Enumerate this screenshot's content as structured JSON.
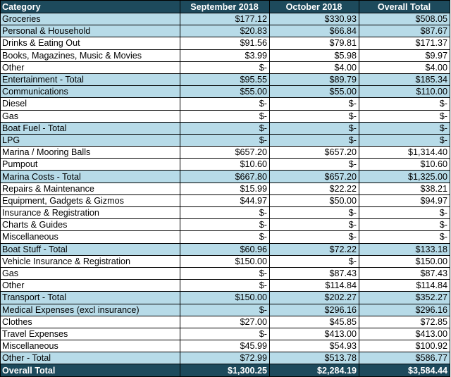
{
  "table": {
    "headers": [
      "Category",
      "September 2018",
      "October 2018",
      "Overall Total"
    ],
    "rows": [
      {
        "cells": [
          "Groceries",
          "$177.12",
          "$330.93",
          "$508.05"
        ],
        "highlight": true
      },
      {
        "cells": [
          "Personal & Household",
          "$20.83",
          "$66.84",
          "$87.67"
        ],
        "highlight": true
      },
      {
        "cells": [
          "Drinks & Eating Out",
          "$91.56",
          "$79.81",
          "$171.37"
        ],
        "highlight": false
      },
      {
        "cells": [
          "Books, Magazines, Music & Movies",
          "$3.99",
          "$5.98",
          "$9.97"
        ],
        "highlight": false
      },
      {
        "cells": [
          "Other",
          "$-",
          "$4.00",
          "$4.00"
        ],
        "highlight": false
      },
      {
        "cells": [
          "Entertainment - Total",
          "$95.55",
          "$89.79",
          "$185.34"
        ],
        "highlight": true
      },
      {
        "cells": [
          "Communications",
          "$55.00",
          "$55.00",
          "$110.00"
        ],
        "highlight": true
      },
      {
        "cells": [
          "Diesel",
          "$-",
          "$-",
          "$-"
        ],
        "highlight": false
      },
      {
        "cells": [
          "Gas",
          "$-",
          "$-",
          "$-"
        ],
        "highlight": false
      },
      {
        "cells": [
          "Boat Fuel - Total",
          "$-",
          "$-",
          "$-"
        ],
        "highlight": true
      },
      {
        "cells": [
          "LPG",
          "$-",
          "$-",
          "$-"
        ],
        "highlight": true
      },
      {
        "cells": [
          "Marina / Mooring Balls",
          "$657.20",
          "$657.20",
          "$1,314.40"
        ],
        "highlight": false
      },
      {
        "cells": [
          "Pumpout",
          "$10.60",
          "$-",
          "$10.60"
        ],
        "highlight": false
      },
      {
        "cells": [
          "Marina Costs - Total",
          "$667.80",
          "$657.20",
          "$1,325.00"
        ],
        "highlight": true
      },
      {
        "cells": [
          "Repairs & Maintenance",
          "$15.99",
          "$22.22",
          "$38.21"
        ],
        "highlight": false
      },
      {
        "cells": [
          "Equipment, Gadgets & Gizmos",
          "$44.97",
          "$50.00",
          "$94.97"
        ],
        "highlight": false
      },
      {
        "cells": [
          "Insurance & Registration",
          "$-",
          "$-",
          "$-"
        ],
        "highlight": false
      },
      {
        "cells": [
          "Charts & Guides",
          "$-",
          "$-",
          "$-"
        ],
        "highlight": false
      },
      {
        "cells": [
          "Miscellaneous",
          "$-",
          "$-",
          "$-"
        ],
        "highlight": false
      },
      {
        "cells": [
          "Boat Stuff - Total",
          "$60.96",
          "$72.22",
          "$133.18"
        ],
        "highlight": true
      },
      {
        "cells": [
          "Vehicle Insurance & Registration",
          "$150.00",
          "$-",
          "$150.00"
        ],
        "highlight": false
      },
      {
        "cells": [
          "Gas",
          "$-",
          "$87.43",
          "$87.43"
        ],
        "highlight": false
      },
      {
        "cells": [
          "Other",
          "$-",
          "$114.84",
          "$114.84"
        ],
        "highlight": false
      },
      {
        "cells": [
          "Transport - Total",
          "$150.00",
          "$202.27",
          "$352.27"
        ],
        "highlight": true
      },
      {
        "cells": [
          "Medical Expenses (excl insurance)",
          "$-",
          "$296.16",
          "$296.16"
        ],
        "highlight": true
      },
      {
        "cells": [
          "Clothes",
          "$27.00",
          "$45.85",
          "$72.85"
        ],
        "highlight": false
      },
      {
        "cells": [
          "Travel Expenses",
          "$-",
          "$413.00",
          "$413.00"
        ],
        "highlight": false
      },
      {
        "cells": [
          "Miscellaneous",
          "$45.99",
          "$54.93",
          "$100.92"
        ],
        "highlight": false
      },
      {
        "cells": [
          "Other - Total",
          "$72.99",
          "$513.78",
          "$586.77"
        ],
        "highlight": true
      }
    ],
    "footer": [
      "Overall Total",
      "$1,300.25",
      "$2,284.19",
      "$3,584.44"
    ]
  },
  "colors": {
    "header_bg": "#1d4a5c",
    "header_text": "#ffffff",
    "highlight_row_bg": "#b7dbe8",
    "border": "#000000"
  }
}
